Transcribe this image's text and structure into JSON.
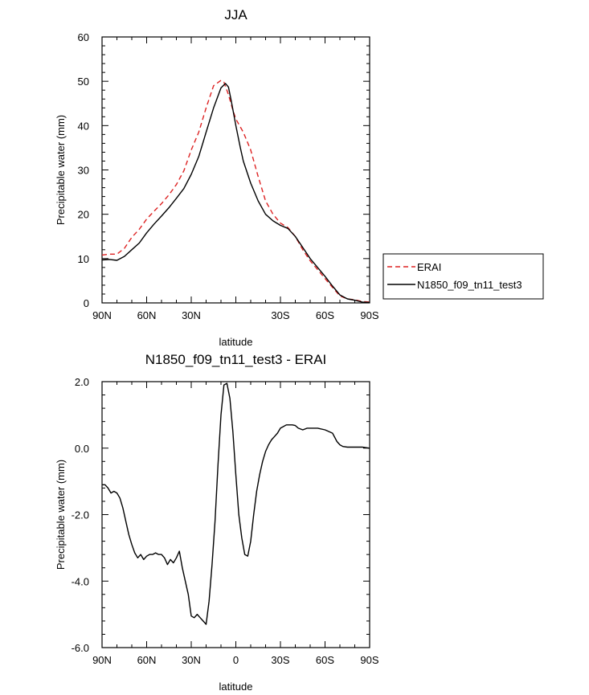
{
  "chart_data": [
    {
      "type": "line",
      "title": "JJA",
      "xlabel": "latitude",
      "ylabel": "Precipitable water (mm)",
      "xlim": [
        90,
        -90
      ],
      "ylim": [
        0,
        60
      ],
      "xticks": [
        90,
        60,
        30,
        0,
        -30,
        -60,
        -90
      ],
      "xtick_labels": [
        "90N",
        "60N",
        "30N",
        "",
        "30S",
        "60S",
        "90S"
      ],
      "yticks": [
        0,
        10,
        20,
        30,
        40,
        50,
        60
      ],
      "ytick_labels": [
        "0",
        "10",
        "20",
        "30",
        "40",
        "50",
        "60"
      ],
      "legend": {
        "placement": "right-outside"
      },
      "series": [
        {
          "name": "ERAI",
          "color": "#dd2222",
          "style": "dashed",
          "x": [
            90,
            85,
            80,
            75,
            70,
            65,
            60,
            55,
            50,
            45,
            40,
            35,
            30,
            25,
            20,
            15,
            10,
            8,
            5,
            2,
            0,
            -5,
            -10,
            -15,
            -20,
            -25,
            -30,
            -35,
            -40,
            -45,
            -50,
            -55,
            -60,
            -65,
            -70,
            -75,
            -80,
            -85,
            -90
          ],
          "y": [
            10.8,
            11.0,
            11.0,
            12.3,
            14.8,
            16.6,
            18.9,
            20.7,
            22.4,
            24.4,
            26.7,
            29.8,
            34.5,
            38.5,
            44.0,
            49.0,
            50.2,
            49.8,
            47.0,
            43.5,
            41.5,
            38.5,
            34.5,
            28.5,
            23.0,
            20.0,
            18.0,
            17.0,
            15.0,
            12.0,
            9.5,
            7.5,
            5.5,
            3.5,
            1.6,
            0.9,
            0.7,
            0.3,
            0.2
          ]
        },
        {
          "name": "N1850_f09_tn11_test3",
          "color": "#000000",
          "style": "solid",
          "x": [
            90,
            85,
            80,
            75,
            70,
            65,
            60,
            55,
            50,
            45,
            40,
            35,
            30,
            25,
            20,
            15,
            10,
            7,
            5,
            3,
            0,
            -3,
            -5,
            -10,
            -15,
            -20,
            -25,
            -30,
            -35,
            -40,
            -45,
            -50,
            -55,
            -60,
            -65,
            -70,
            -75,
            -80,
            -85,
            -90
          ],
          "y": [
            9.7,
            9.8,
            9.6,
            10.5,
            12.0,
            13.5,
            15.8,
            17.8,
            19.6,
            21.5,
            23.6,
            25.8,
            29.0,
            33.0,
            38.5,
            44.0,
            48.5,
            49.5,
            48.7,
            45.5,
            40.0,
            35.0,
            32.0,
            27.0,
            23.0,
            20.0,
            18.5,
            17.5,
            16.8,
            15.0,
            12.5,
            10.0,
            8.0,
            6.0,
            3.8,
            1.8,
            0.9,
            0.6,
            0.2,
            0.1
          ]
        }
      ]
    },
    {
      "type": "line",
      "title": "N1850_f09_tn11_test3 - ERAI",
      "xlabel": "latitude",
      "ylabel": "Precipitable water (mm)",
      "xlim": [
        90,
        -90
      ],
      "ylim": [
        -6,
        2
      ],
      "xticks": [
        90,
        60,
        30,
        0,
        -30,
        -60,
        -90
      ],
      "xtick_labels": [
        "90N",
        "60N",
        "30N",
        "0",
        "30S",
        "60S",
        "90S"
      ],
      "yticks": [
        -6,
        -4,
        -2,
        0,
        2
      ],
      "ytick_labels": [
        "-6.0",
        "-4.0",
        "-2.0",
        "0.0",
        "2.0"
      ],
      "series": [
        {
          "color": "#000000",
          "style": "solid",
          "x": [
            90,
            88,
            86,
            84,
            82,
            80,
            78,
            76,
            74,
            72,
            70,
            68,
            66,
            64,
            62,
            60,
            58,
            56,
            54,
            52,
            50,
            48,
            46,
            44,
            42,
            40,
            38,
            36,
            34,
            32,
            30,
            28,
            26,
            24,
            22,
            20,
            18,
            16,
            14,
            12,
            10,
            8,
            6,
            4,
            2,
            0,
            -2,
            -4,
            -6,
            -8,
            -10,
            -12,
            -14,
            -16,
            -18,
            -20,
            -22,
            -24,
            -26,
            -28,
            -30,
            -32,
            -34,
            -36,
            -38,
            -40,
            -42,
            -45,
            -48,
            -50,
            -55,
            -60,
            -65,
            -68,
            -70,
            -72,
            -75,
            -80,
            -85,
            -90
          ],
          "y": [
            -1.1,
            -1.1,
            -1.2,
            -1.35,
            -1.3,
            -1.35,
            -1.5,
            -1.8,
            -2.2,
            -2.6,
            -2.9,
            -3.15,
            -3.3,
            -3.2,
            -3.35,
            -3.25,
            -3.2,
            -3.2,
            -3.15,
            -3.2,
            -3.2,
            -3.3,
            -3.5,
            -3.35,
            -3.45,
            -3.3,
            -3.1,
            -3.6,
            -4.0,
            -4.4,
            -5.05,
            -5.1,
            -5.0,
            -5.1,
            -5.2,
            -5.3,
            -4.6,
            -3.5,
            -2.2,
            -0.5,
            1.0,
            1.9,
            1.95,
            1.5,
            0.5,
            -0.8,
            -2.0,
            -2.7,
            -3.2,
            -3.25,
            -2.8,
            -2.0,
            -1.3,
            -0.8,
            -0.4,
            -0.1,
            0.1,
            0.25,
            0.35,
            0.45,
            0.6,
            0.65,
            0.7,
            0.7,
            0.7,
            0.68,
            0.6,
            0.55,
            0.6,
            0.6,
            0.6,
            0.55,
            0.45,
            0.2,
            0.1,
            0.05,
            0.03,
            0.03,
            0.03,
            0.0
          ]
        }
      ]
    }
  ]
}
